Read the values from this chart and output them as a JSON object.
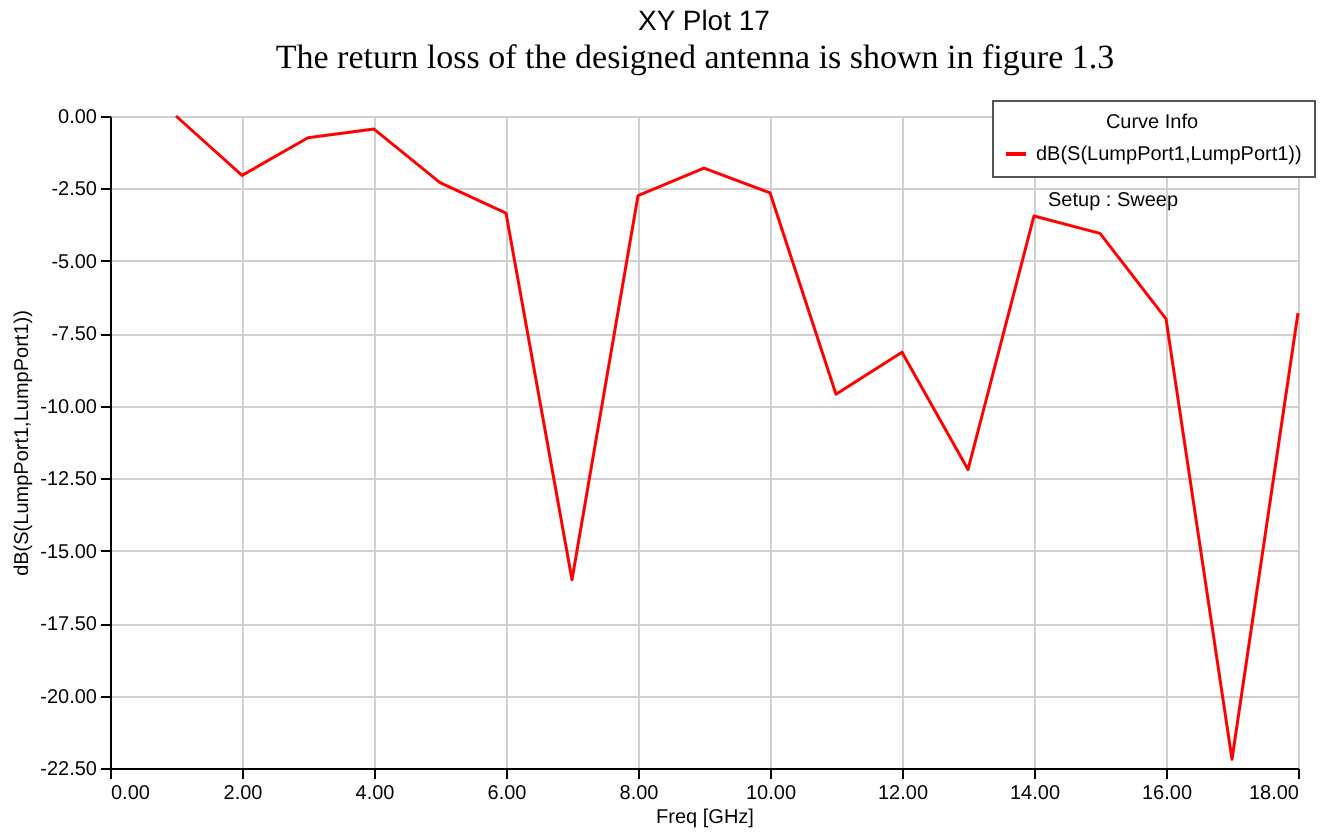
{
  "chart_data": {
    "type": "line",
    "title": "XY Plot 17",
    "xlabel": "Freq [GHz]",
    "ylabel": "dB(S(LumpPort1,LumpPort1))",
    "legend_title": "Curve Info",
    "annotations": [
      "The return loss of the designed antenna is shown in figure 1.3",
      "Setup : Sweep"
    ],
    "x": [
      1,
      2,
      3,
      4,
      5,
      6,
      7,
      8,
      9,
      10,
      11,
      12,
      13,
      14,
      15,
      16,
      17,
      18
    ],
    "series": [
      {
        "name": "dB(S(LumpPort1,LumpPort1))",
        "color": "#ff0000",
        "values": [
          0.0,
          -2.05,
          -0.75,
          -0.45,
          -2.3,
          -3.35,
          -16.0,
          -2.75,
          -1.8,
          -2.65,
          -9.6,
          -8.15,
          -12.2,
          -3.45,
          -4.05,
          -7.0,
          -22.2,
          -6.8
        ]
      }
    ],
    "xlim": [
      0,
      18
    ],
    "ylim": [
      -22.5,
      0
    ],
    "xticks": [
      {
        "value": 0,
        "label": "0.00"
      },
      {
        "value": 2,
        "label": "2.00"
      },
      {
        "value": 4,
        "label": "4.00"
      },
      {
        "value": 6,
        "label": "6.00"
      },
      {
        "value": 8,
        "label": "8.00"
      },
      {
        "value": 10,
        "label": "10.00"
      },
      {
        "value": 12,
        "label": "12.00"
      },
      {
        "value": 14,
        "label": "14.00"
      },
      {
        "value": 16,
        "label": "16.00"
      },
      {
        "value": 18,
        "label": "18.00"
      }
    ],
    "yticks": [
      {
        "value": 0,
        "label": "0.00"
      },
      {
        "value": -2.5,
        "label": "-2.50"
      },
      {
        "value": -5,
        "label": "-5.00"
      },
      {
        "value": -7.5,
        "label": "-7.50"
      },
      {
        "value": -10,
        "label": "-10.00"
      },
      {
        "value": -12.5,
        "label": "-12.50"
      },
      {
        "value": -15,
        "label": "-15.00"
      },
      {
        "value": -17.5,
        "label": "-17.50"
      },
      {
        "value": -20,
        "label": "-20.00"
      },
      {
        "value": -22.5,
        "label": "-22.50"
      }
    ],
    "grid": true,
    "legend": "top right",
    "line_style": "solid",
    "marker": "none"
  }
}
